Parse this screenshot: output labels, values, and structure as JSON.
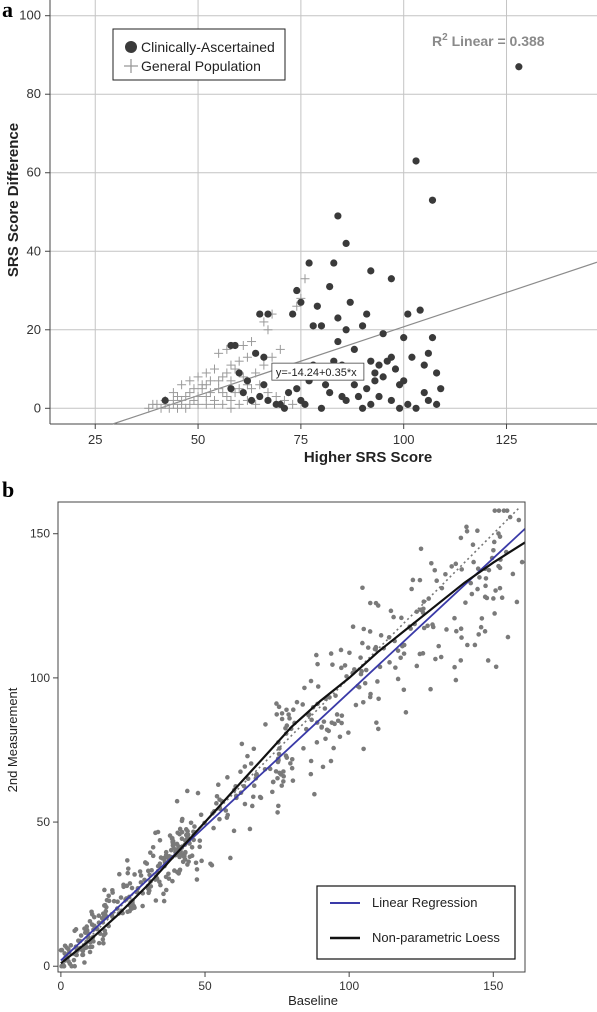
{
  "panels": {
    "a": "a",
    "b": "b"
  },
  "chart_data": [
    {
      "type": "scatter",
      "panel": "a",
      "xlabel": "Higher SRS Score",
      "ylabel": "SRS Score Difference",
      "xlim": [
        14,
        147
      ],
      "ylim": [
        -4,
        104
      ],
      "xticks": [
        25,
        50,
        75,
        100,
        125
      ],
      "yticks": [
        0,
        20,
        40,
        60,
        80,
        100
      ],
      "grid": true,
      "legend_position": "top-left",
      "legend": [
        "Clinically-Ascertained",
        "General Population"
      ],
      "annotation_r2": {
        "base": "R",
        "sup": "2",
        "rest": " Linear = 0.388"
      },
      "fit_equation": "y=-14.24+0.35*x",
      "fit": {
        "intercept": -14.24,
        "slope": 0.35
      },
      "series": [
        {
          "name": "Clinically-Ascertained",
          "marker": "circle",
          "color": "#3a3a3a",
          "points": [
            [
              128,
              87
            ],
            [
              103,
              63
            ],
            [
              107,
              53
            ],
            [
              84,
              49
            ],
            [
              86,
              42
            ],
            [
              77,
              37
            ],
            [
              83,
              37
            ],
            [
              82,
              31
            ],
            [
              74,
              30
            ],
            [
              92,
              35
            ],
            [
              97,
              33
            ],
            [
              75,
              27
            ],
            [
              79,
              26
            ],
            [
              87,
              27
            ],
            [
              101,
              24
            ],
            [
              104,
              25
            ],
            [
              91,
              24
            ],
            [
              65,
              24
            ],
            [
              67,
              24
            ],
            [
              73,
              24
            ],
            [
              58,
              16
            ],
            [
              59,
              16
            ],
            [
              64,
              14
            ],
            [
              66,
              13
            ],
            [
              78,
              21
            ],
            [
              80,
              21
            ],
            [
              84,
              23
            ],
            [
              86,
              20
            ],
            [
              90,
              21
            ],
            [
              95,
              19
            ],
            [
              100,
              18
            ],
            [
              107,
              18
            ],
            [
              106,
              14
            ],
            [
              84,
              17
            ],
            [
              88,
              15
            ],
            [
              70,
              10
            ],
            [
              73,
              9
            ],
            [
              85,
              11
            ],
            [
              92,
              12
            ],
            [
              94,
              11
            ],
            [
              96,
              12
            ],
            [
              98,
              10
            ],
            [
              102,
              13
            ],
            [
              105,
              11
            ],
            [
              108,
              9
            ],
            [
              60,
              9
            ],
            [
              62,
              7
            ],
            [
              58,
              5
            ],
            [
              66,
              6
            ],
            [
              72,
              4
            ],
            [
              74,
              5
            ],
            [
              77,
              7
            ],
            [
              81,
              6
            ],
            [
              88,
              6
            ],
            [
              91,
              5
            ],
            [
              93,
              7
            ],
            [
              99,
              6
            ],
            [
              82,
              4
            ],
            [
              85,
              3
            ],
            [
              63,
              2
            ],
            [
              65,
              3
            ],
            [
              67,
              2
            ],
            [
              69,
              1
            ],
            [
              71,
              0
            ],
            [
              76,
              1
            ],
            [
              86,
              2
            ],
            [
              89,
              3
            ],
            [
              92,
              1
            ],
            [
              97,
              2
            ],
            [
              101,
              1
            ],
            [
              105,
              4
            ],
            [
              106,
              2
            ],
            [
              108,
              1
            ],
            [
              99,
              0
            ],
            [
              90,
              0
            ],
            [
              80,
              0
            ],
            [
              95,
              8
            ],
            [
              93,
              9
            ],
            [
              42,
              2
            ],
            [
              97,
              13
            ],
            [
              103,
              0
            ],
            [
              70,
              1
            ],
            [
              75,
              2
            ],
            [
              87,
              8
            ],
            [
              100,
              7
            ],
            [
              83,
              12
            ],
            [
              78,
              11
            ],
            [
              94,
              3
            ],
            [
              109,
              5
            ],
            [
              61,
              4
            ]
          ]
        },
        {
          "name": "General Population",
          "marker": "plus",
          "color": "#9a9a9a",
          "points": [
            [
              76,
              33
            ],
            [
              75,
              28
            ],
            [
              74,
              26
            ],
            [
              68,
              24
            ],
            [
              67,
              20
            ],
            [
              66,
              22
            ],
            [
              63,
              17
            ],
            [
              61,
              16
            ],
            [
              57,
              15
            ],
            [
              55,
              14
            ],
            [
              60,
              12
            ],
            [
              62,
              13
            ],
            [
              58,
              11
            ],
            [
              54,
              10
            ],
            [
              52,
              9
            ],
            [
              50,
              8
            ],
            [
              56,
              8
            ],
            [
              48,
              7
            ],
            [
              52,
              6
            ],
            [
              55,
              7
            ],
            [
              58,
              7
            ],
            [
              46,
              6
            ],
            [
              49,
              5
            ],
            [
              51,
              5
            ],
            [
              53,
              4
            ],
            [
              56,
              4
            ],
            [
              60,
              5
            ],
            [
              44,
              4
            ],
            [
              45,
              3
            ],
            [
              47,
              3
            ],
            [
              49,
              2
            ],
            [
              52,
              3
            ],
            [
              54,
              2
            ],
            [
              58,
              2
            ],
            [
              40,
              1
            ],
            [
              42,
              1
            ],
            [
              44,
              1
            ],
            [
              46,
              1
            ],
            [
              48,
              1
            ],
            [
              50,
              1
            ],
            [
              52,
              1
            ],
            [
              54,
              1
            ],
            [
              56,
              1
            ],
            [
              58,
              0
            ],
            [
              60,
              1
            ],
            [
              62,
              2
            ],
            [
              64,
              1
            ],
            [
              41,
              0
            ],
            [
              43,
              0
            ],
            [
              45,
              0
            ],
            [
              47,
              0
            ],
            [
              39,
              1
            ],
            [
              38,
              0
            ],
            [
              46,
              2
            ],
            [
              50,
              3
            ],
            [
              57,
              9
            ],
            [
              59,
              10
            ],
            [
              53,
              7
            ],
            [
              51,
              6
            ],
            [
              48,
              4
            ],
            [
              44,
              2
            ],
            [
              42,
              2
            ],
            [
              55,
              5
            ],
            [
              61,
              8
            ],
            [
              64,
              9
            ],
            [
              66,
              11
            ],
            [
              68,
              13
            ],
            [
              70,
              15
            ],
            [
              72,
              10
            ],
            [
              65,
              6
            ],
            [
              63,
              5
            ],
            [
              67,
              4
            ],
            [
              69,
              3
            ],
            [
              71,
              2
            ],
            [
              73,
              1
            ],
            [
              57,
              3
            ],
            [
              59,
              4
            ],
            [
              62,
              6
            ]
          ]
        }
      ]
    },
    {
      "type": "scatter",
      "panel": "b",
      "xlabel": "Baseline",
      "ylabel": "2nd Measurement",
      "xlim": [
        -1,
        161
      ],
      "ylim": [
        -2,
        161
      ],
      "xticks": [
        0,
        50,
        100,
        150
      ],
      "yticks": [
        0,
        50,
        100,
        150
      ],
      "grid": false,
      "legend_position": "bottom-right",
      "legend": [
        "Linear Regression",
        "Non-parametric Loess"
      ],
      "identity_line": {
        "style": "dotted",
        "color": "#777777"
      },
      "linear_regression": {
        "intercept": 2,
        "slope": 0.93,
        "color": "#3a3aa8"
      },
      "loess": {
        "color": "#111111",
        "points": [
          [
            0,
            1
          ],
          [
            10,
            9
          ],
          [
            20,
            18
          ],
          [
            30,
            28
          ],
          [
            40,
            39
          ],
          [
            50,
            50
          ],
          [
            60,
            61
          ],
          [
            70,
            72
          ],
          [
            80,
            83
          ],
          [
            90,
            92
          ],
          [
            100,
            100
          ],
          [
            110,
            109
          ],
          [
            120,
            117
          ],
          [
            130,
            125
          ],
          [
            140,
            133
          ],
          [
            150,
            140
          ],
          [
            161,
            147
          ]
        ]
      },
      "point_color": "#7a7a7a",
      "n_points": 520,
      "seed": 17
    }
  ]
}
